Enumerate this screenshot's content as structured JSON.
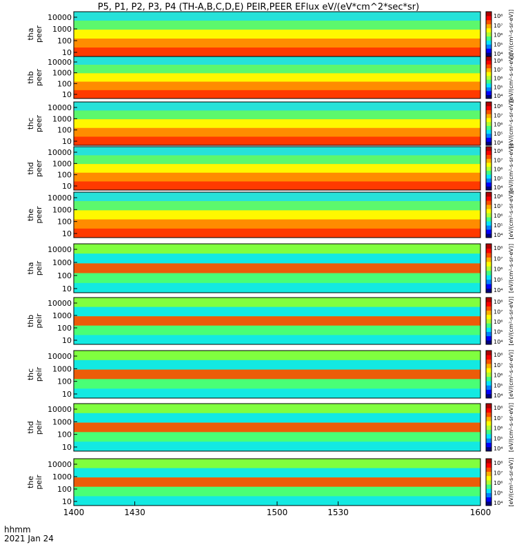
{
  "chart_data": {
    "type": "heatmap",
    "title": "P5, P1, P2, P3, P4 (TH-A,B,C,D,E) PEIR,PEER EFlux eV/(eV*cm^2*sec*sr)",
    "x_axis": {
      "corner_label_1": "hhmm",
      "corner_label_2": "2021 Jan 24",
      "tick_labels": [
        "1400",
        "1430",
        "1500",
        "1530",
        "1600"
      ],
      "range": [
        1400,
        1600
      ]
    },
    "energy_tick_labels": [
      "10",
      "100",
      "1000",
      "10000"
    ],
    "colorbar": {
      "tick_labels": [
        "10⁴",
        "10⁵",
        "10⁶",
        "10⁷",
        "10⁸"
      ],
      "unit_label": "[eV/(cm²-s-sr-eV)]",
      "colors": [
        "#00007f",
        "#0000ff",
        "#0080ff",
        "#00e5ff",
        "#40ff80",
        "#b0ff30",
        "#ffff00",
        "#ffb000",
        "#ff5000",
        "#ff0000",
        "#b00000"
      ]
    },
    "panels": [
      {
        "name": "tha peer",
        "probe": "tha",
        "species": "peer"
      },
      {
        "name": "thb peer",
        "probe": "thb",
        "species": "peer"
      },
      {
        "name": "thc peer",
        "probe": "thc",
        "species": "peer"
      },
      {
        "name": "thd peer",
        "probe": "thd",
        "species": "peer"
      },
      {
        "name": "the peer",
        "probe": "the",
        "species": "peer"
      },
      {
        "name": "tha peir",
        "probe": "tha",
        "species": "peir"
      },
      {
        "name": "thb peir",
        "probe": "thb",
        "species": "peir"
      },
      {
        "name": "thc peir",
        "probe": "thc",
        "species": "peir"
      },
      {
        "name": "thd peir",
        "probe": "thd",
        "species": "peir"
      },
      {
        "name": "the peir",
        "probe": "the",
        "species": "peir"
      }
    ]
  }
}
